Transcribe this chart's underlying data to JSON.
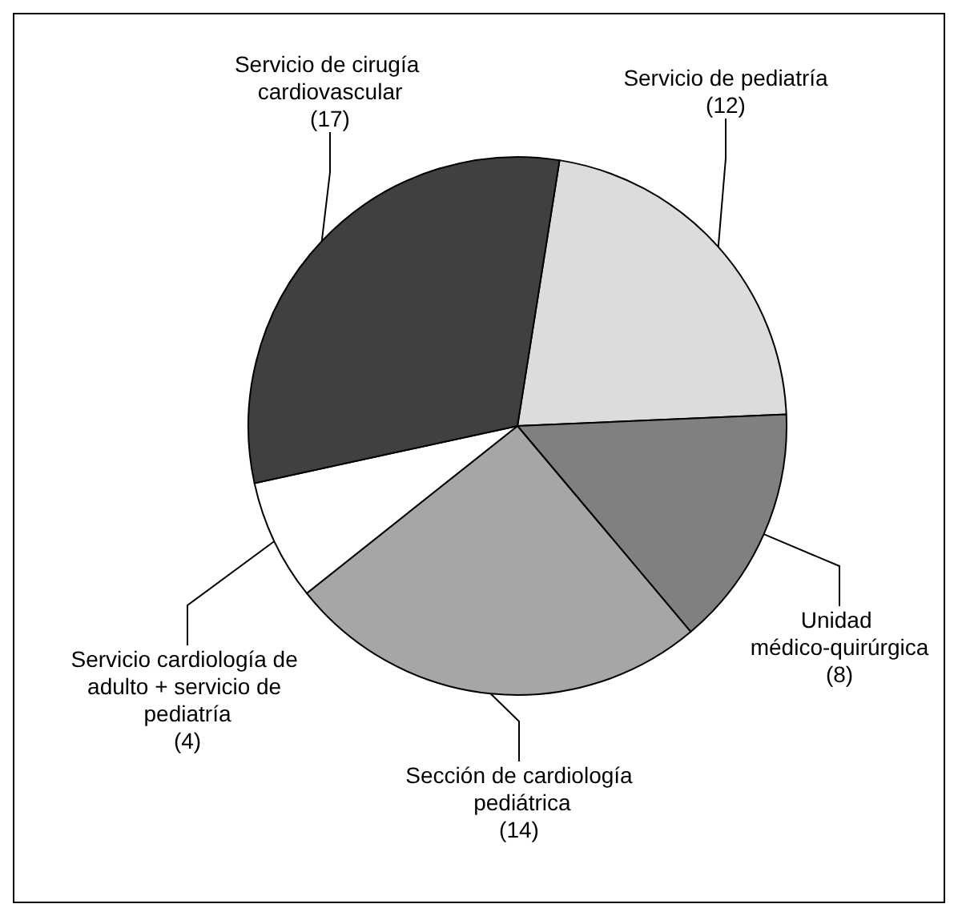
{
  "chart_data": {
    "type": "pie",
    "categories": [
      "Servicio de pediatría",
      "Unidad médico-quirúrgica",
      "Sección de cardiología pediátrica",
      "Servicio cardiología de adulto + servicio de pediatría",
      "Servicio de cirugía cardiovascular"
    ],
    "values": [
      12,
      8,
      14,
      4,
      17
    ],
    "colors": [
      "#dcdcdc",
      "#808080",
      "#a6a6a6",
      "#ffffff",
      "#404040"
    ],
    "value_labels": [
      "(12)",
      "(8)",
      "(14)",
      "(4)",
      "(17)"
    ],
    "legend": false
  }
}
